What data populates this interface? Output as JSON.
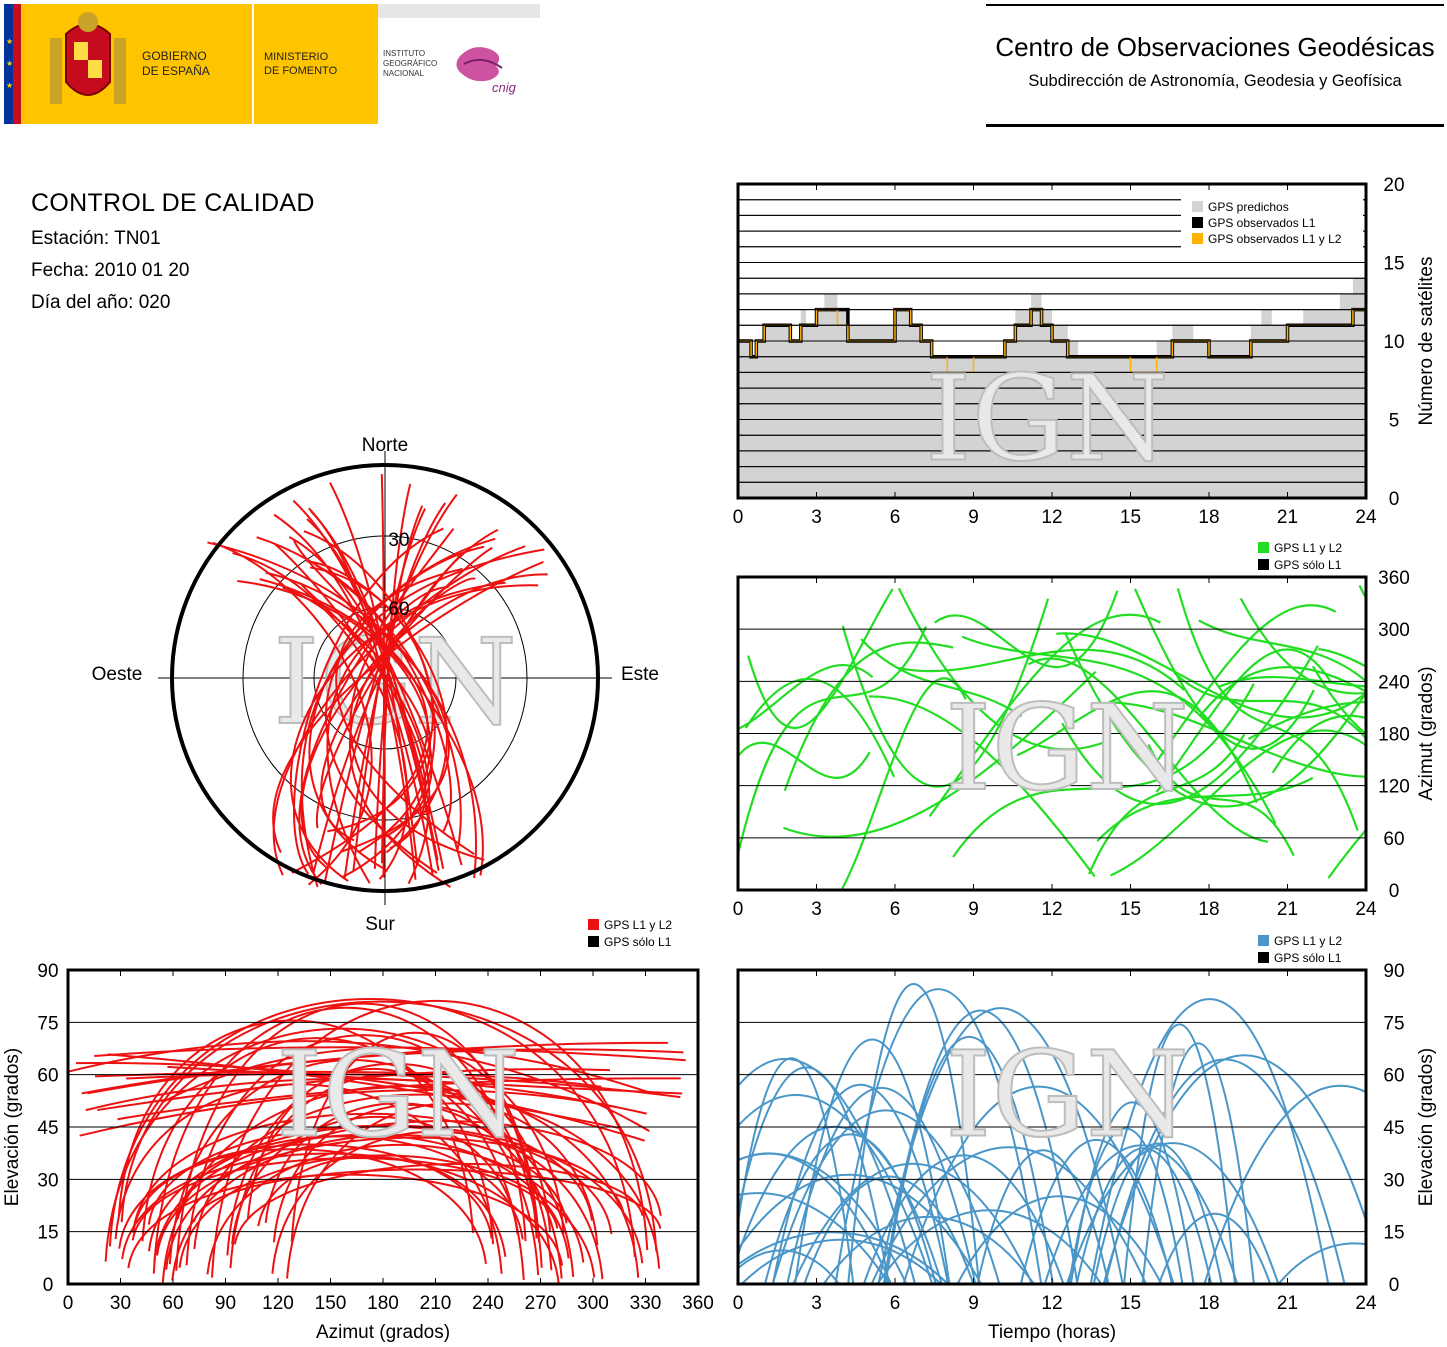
{
  "header": {
    "gov_line1": "GOBIERNO",
    "gov_line2": "DE ESPAÑA",
    "ministry_line1": "MINISTERIO",
    "ministry_line2": "DE FOMENTO",
    "ign_line1": "INSTITUTO",
    "ign_line2": "GEOGRÁFICO",
    "ign_line3": "NACIONAL",
    "logo_script": "cnig",
    "org_title": "Centro de Observaciones Geodésicas",
    "org_subtitle": "Subdirección de Astronomía, Geodesia y Geofísica"
  },
  "report": {
    "title": "CONTROL DE CALIDAD",
    "station": "Estación: TN01",
    "date": "Fecha: 2010 01 20",
    "doy": "Día del año: 020"
  },
  "colors": {
    "grey_predicted": "#d3d3d3",
    "l1": "#000000",
    "l1l2_orange": "#ffb300",
    "green": "#22dd22",
    "red": "#ee1111",
    "blue": "#4a96c8",
    "flag_red": "#c60b1e",
    "flag_yellow": "#ffc400",
    "eu_blue": "#003399"
  },
  "watermark": "IGN",
  "chart_data": [
    {
      "id": "satellites",
      "type": "area",
      "x_ticks": [
        "0",
        "3",
        "6",
        "9",
        "12",
        "15",
        "18",
        "21",
        "24"
      ],
      "y_ticks": [
        "0",
        "5",
        "10",
        "15",
        "20"
      ],
      "xlim": [
        0,
        24
      ],
      "ylim": [
        0,
        20
      ],
      "ylabel": "Número de satélites",
      "legend_position": "top-right",
      "legend": [
        "GPS predichos",
        "GPS observados L1",
        "GPS observados L1 y L2"
      ],
      "series": [
        {
          "name": "GPS predichos",
          "steps": [
            [
              0,
              10
            ],
            [
              0.5,
              9
            ],
            [
              0.7,
              10
            ],
            [
              1,
              11
            ],
            [
              1.5,
              11
            ],
            [
              2,
              10
            ],
            [
              2.4,
              12
            ],
            [
              2.6,
              11
            ],
            [
              3,
              12
            ],
            [
              3.3,
              13
            ],
            [
              3.8,
              12
            ],
            [
              4.2,
              11
            ],
            [
              5.5,
              11
            ],
            [
              6,
              12
            ],
            [
              6.6,
              11
            ],
            [
              7,
              10
            ],
            [
              7.4,
              9
            ],
            [
              8,
              9
            ],
            [
              9,
              9
            ],
            [
              10.2,
              10
            ],
            [
              10.6,
              12
            ],
            [
              11.2,
              13
            ],
            [
              11.6,
              12
            ],
            [
              12,
              11
            ],
            [
              12.6,
              10
            ],
            [
              13,
              9
            ],
            [
              14,
              9
            ],
            [
              15,
              9
            ],
            [
              16,
              10
            ],
            [
              16.6,
              11
            ],
            [
              17.4,
              10
            ],
            [
              18,
              10
            ],
            [
              19,
              10
            ],
            [
              19.6,
              11
            ],
            [
              20,
              12
            ],
            [
              20.4,
              11
            ],
            [
              21,
              11
            ],
            [
              21.6,
              12
            ],
            [
              22.4,
              12
            ],
            [
              23,
              13
            ],
            [
              23.5,
              14
            ],
            [
              24,
              12
            ]
          ]
        },
        {
          "name": "GPS observados L1",
          "steps": [
            [
              0,
              10
            ],
            [
              0.5,
              9
            ],
            [
              0.7,
              10
            ],
            [
              1,
              11
            ],
            [
              1.5,
              11
            ],
            [
              2,
              10
            ],
            [
              2.4,
              11
            ],
            [
              2.6,
              11
            ],
            [
              3,
              12
            ],
            [
              3.3,
              12
            ],
            [
              3.8,
              12
            ],
            [
              4.2,
              10
            ],
            [
              5.5,
              10
            ],
            [
              6,
              12
            ],
            [
              6.6,
              11
            ],
            [
              7,
              10
            ],
            [
              7.4,
              9
            ],
            [
              8,
              9
            ],
            [
              9,
              9
            ],
            [
              10.2,
              10
            ],
            [
              10.6,
              11
            ],
            [
              11.2,
              12
            ],
            [
              11.6,
              11
            ],
            [
              12,
              10
            ],
            [
              12.6,
              9
            ],
            [
              13,
              9
            ],
            [
              14,
              9
            ],
            [
              15,
              9
            ],
            [
              16,
              9
            ],
            [
              16.6,
              10
            ],
            [
              17.4,
              10
            ],
            [
              18,
              9
            ],
            [
              19,
              9
            ],
            [
              19.6,
              10
            ],
            [
              20,
              10
            ],
            [
              20.4,
              10
            ],
            [
              21,
              11
            ],
            [
              21.6,
              11
            ],
            [
              22.4,
              11
            ],
            [
              23,
              11
            ],
            [
              23.5,
              12
            ],
            [
              24,
              11
            ]
          ]
        },
        {
          "name": "GPS observados L1 y L2",
          "steps": [
            [
              0,
              10
            ],
            [
              0.5,
              9
            ],
            [
              0.7,
              10
            ],
            [
              1,
              11
            ],
            [
              1.5,
              11
            ],
            [
              2,
              10
            ],
            [
              2.4,
              11
            ],
            [
              2.6,
              11
            ],
            [
              3,
              12
            ],
            [
              3.3,
              12
            ],
            [
              3.8,
              11
            ],
            [
              4.2,
              10
            ],
            [
              5.5,
              10
            ],
            [
              6,
              12
            ],
            [
              6.6,
              11
            ],
            [
              7,
              10
            ],
            [
              7.4,
              9
            ],
            [
              8,
              8
            ],
            [
              9,
              9
            ],
            [
              10.2,
              10
            ],
            [
              10.6,
              11
            ],
            [
              11.2,
              12
            ],
            [
              11.6,
              11
            ],
            [
              12,
              10
            ],
            [
              12.6,
              9
            ],
            [
              13,
              9
            ],
            [
              14,
              9
            ],
            [
              15,
              8
            ],
            [
              16,
              9
            ],
            [
              16.6,
              10
            ],
            [
              17.4,
              10
            ],
            [
              18,
              9
            ],
            [
              19,
              9
            ],
            [
              19.6,
              10
            ],
            [
              20,
              10
            ],
            [
              20.4,
              10
            ],
            [
              21,
              11
            ],
            [
              21.6,
              11
            ],
            [
              22.4,
              11
            ],
            [
              23,
              11
            ],
            [
              23.5,
              12
            ],
            [
              24,
              11
            ]
          ]
        }
      ]
    },
    {
      "id": "skyplot",
      "type": "scatter",
      "labels": {
        "north": "Norte",
        "south": "Sur",
        "east": "Este",
        "west": "Oeste"
      },
      "rings": [
        "30",
        "60"
      ],
      "series_name": "GPS L1 y L2"
    },
    {
      "id": "azimuth_time",
      "type": "scatter",
      "x_ticks": [
        "0",
        "3",
        "6",
        "9",
        "12",
        "15",
        "18",
        "21",
        "24"
      ],
      "y_ticks": [
        "0",
        "60",
        "120",
        "180",
        "240",
        "300",
        "360"
      ],
      "xlim": [
        0,
        24
      ],
      "ylim": [
        0,
        360
      ],
      "ylabel": "Azimut (grados)",
      "legend_position": "top-right",
      "legend": [
        "GPS L1 y L2",
        "GPS sólo L1"
      ]
    },
    {
      "id": "elevation_azimuth",
      "type": "scatter",
      "x_ticks": [
        "0",
        "30",
        "60",
        "90",
        "120",
        "150",
        "180",
        "210",
        "240",
        "270",
        "300",
        "330",
        "360"
      ],
      "y_ticks": [
        "0",
        "15",
        "30",
        "45",
        "60",
        "75",
        "90"
      ],
      "xlim": [
        0,
        360
      ],
      "ylim": [
        0,
        90
      ],
      "xlabel": "Azimut (grados)",
      "ylabel": "Elevación (grados)",
      "legend_position": "top-right",
      "legend": [
        "GPS L1 y L2",
        "GPS sólo L1"
      ]
    },
    {
      "id": "elevation_time",
      "type": "scatter",
      "x_ticks": [
        "0",
        "3",
        "6",
        "9",
        "12",
        "15",
        "18",
        "21",
        "24"
      ],
      "y_ticks": [
        "0",
        "15",
        "30",
        "45",
        "60",
        "75",
        "90"
      ],
      "xlim": [
        0,
        24
      ],
      "ylim": [
        0,
        90
      ],
      "xlabel": "Tiempo (horas)",
      "ylabel": "Elevación (grados)",
      "legend_position": "top-right",
      "legend": [
        "GPS L1 y L2",
        "GPS sólo L1"
      ]
    }
  ]
}
